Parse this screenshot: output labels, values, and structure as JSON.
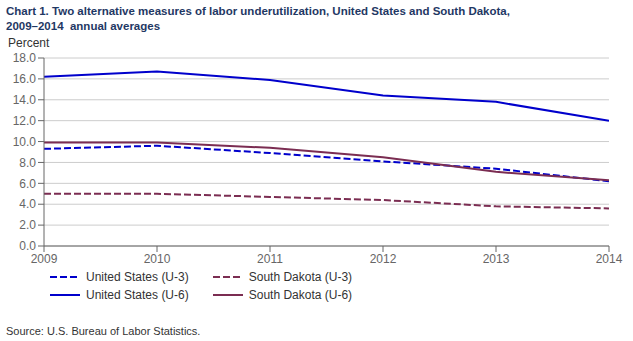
{
  "chart_data": {
    "type": "line",
    "title": "Chart 1. Two alternative measures of labor underutilization, United States and South Dakota,\n2009–2014  annual averages",
    "y_label": "Percent",
    "annotations": [
      "Source: U.S. Bureau of Labor Statistics."
    ],
    "x": [
      2009,
      2010,
      2011,
      2012,
      2013,
      2014
    ],
    "series": [
      {
        "name": "United States (U-3)",
        "color": "#0000cc",
        "line_style": "dashed",
        "values": [
          9.3,
          9.6,
          8.9,
          8.1,
          7.4,
          6.2
        ]
      },
      {
        "name": "South Dakota (U-3)",
        "color": "#7b2d52",
        "line_style": "dashed",
        "values": [
          5.0,
          5.0,
          4.7,
          4.4,
          3.8,
          3.6
        ]
      },
      {
        "name": "United States (U-6)",
        "color": "#0000cc",
        "line_style": "solid",
        "values": [
          16.2,
          16.7,
          15.9,
          14.4,
          13.8,
          12.0
        ]
      },
      {
        "name": "South Dakota (U-6)",
        "color": "#7b2d52",
        "line_style": "solid",
        "values": [
          9.9,
          9.9,
          9.4,
          8.5,
          7.1,
          6.3
        ]
      }
    ],
    "xlim": [
      2009,
      2014
    ],
    "xticks": [
      2009,
      2010,
      2011,
      2012,
      2013,
      2014
    ],
    "ylim": [
      0,
      18.0
    ],
    "yticks": [
      {
        "value": 0.0,
        "label": "0.0"
      },
      {
        "value": 2.0,
        "label": "2.0"
      },
      {
        "value": 4.0,
        "label": "4.0"
      },
      {
        "value": 6.0,
        "label": "6.0"
      },
      {
        "value": 8.0,
        "label": "8.0"
      },
      {
        "value": 10.0,
        "label": "10.0"
      },
      {
        "value": 12.0,
        "label": "12.0"
      },
      {
        "value": 14.0,
        "label": "14.0"
      },
      {
        "value": 16.0,
        "label": "16.0"
      },
      {
        "value": 18.0,
        "label": "18.0"
      }
    ],
    "grid": true,
    "legend": "lower left"
  }
}
